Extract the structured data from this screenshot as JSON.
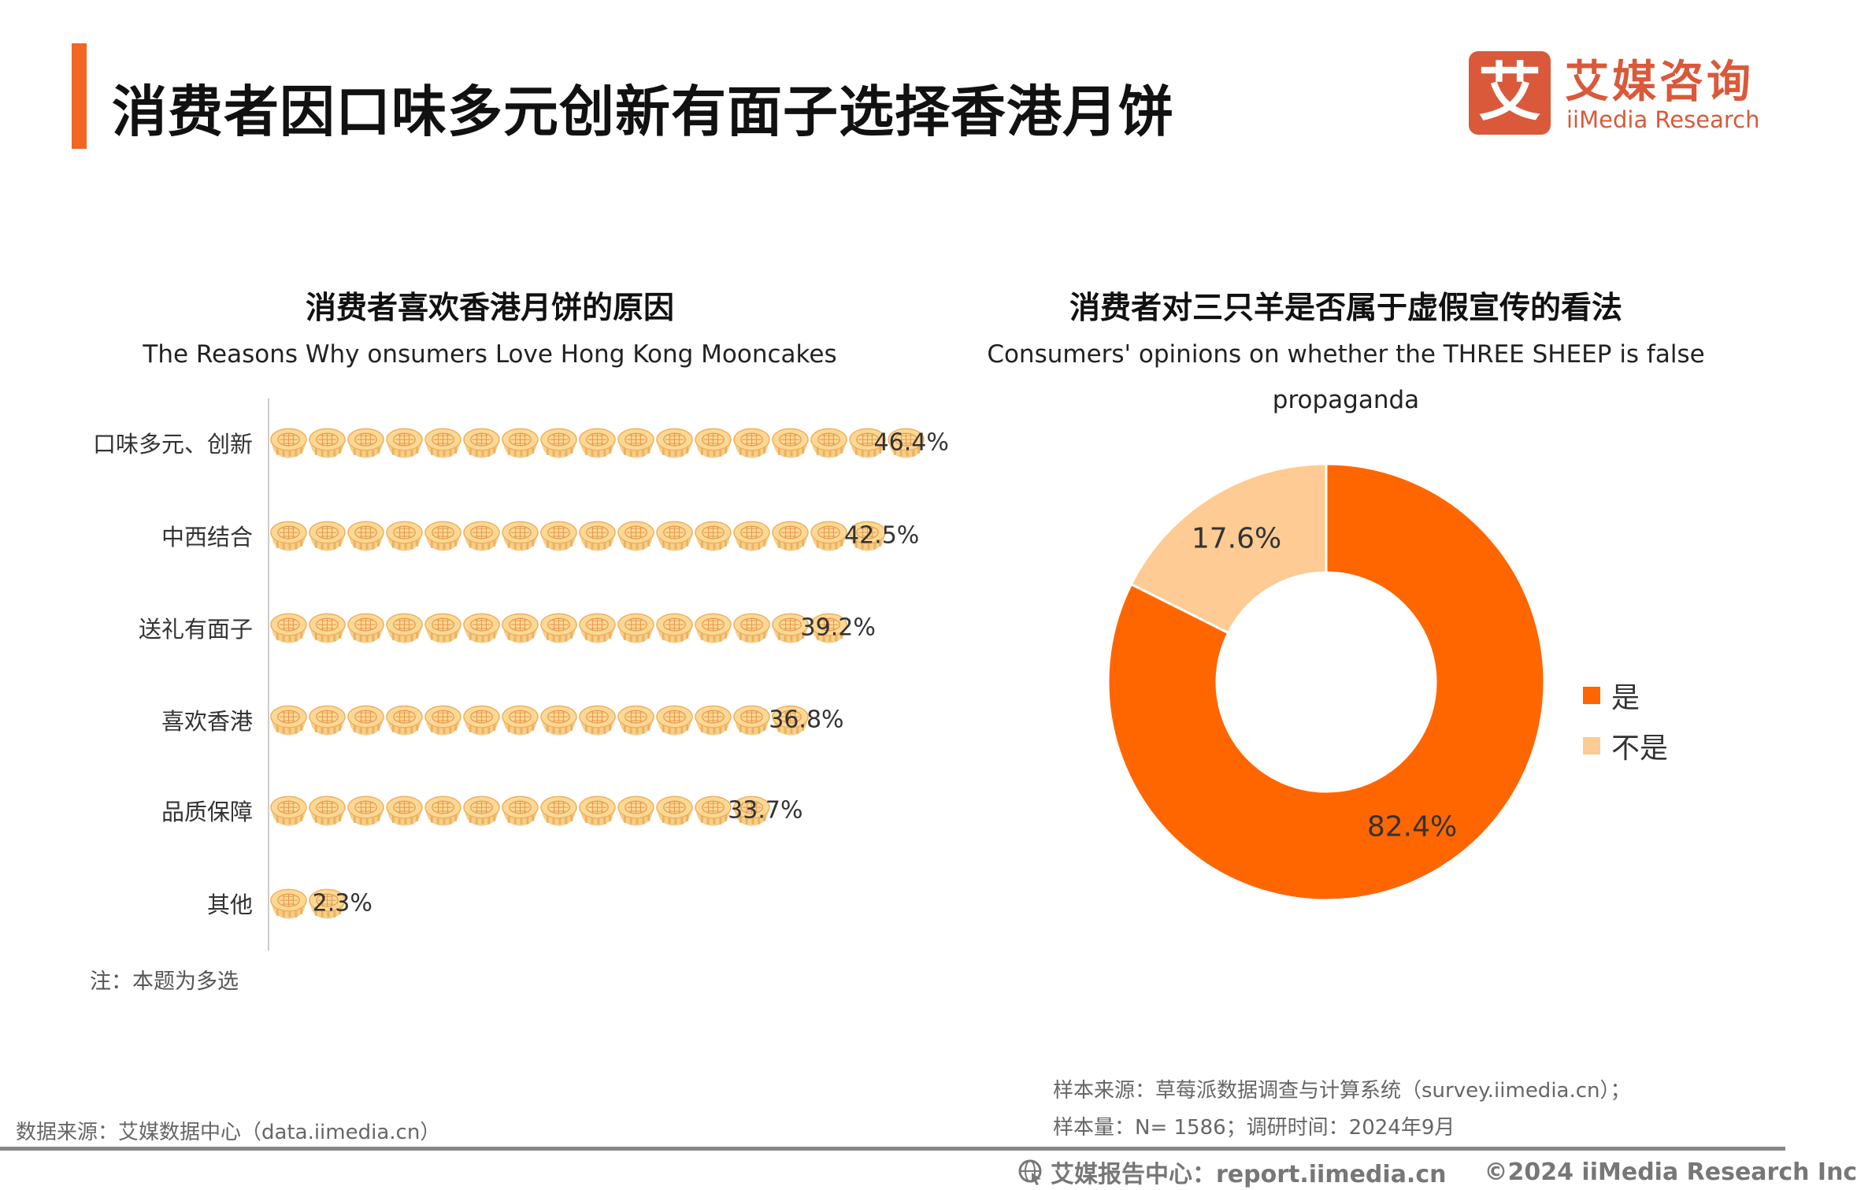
{
  "header": {
    "title": "消费者因口味多元创新有面子选择香港月饼",
    "logo_cn": "艾媒咨询",
    "logo_en": "iiMedia Research",
    "logo_mark": "艾"
  },
  "chart_data": [
    {
      "type": "bar",
      "orientation": "horizontal",
      "title": "消费者喜欢香港月饼的原因",
      "subtitle": "The Reasons Why onsumers Love Hong Kong Mooncakes",
      "categories": [
        "口味多元、创新",
        "中西结合",
        "送礼有面子",
        "喜欢香港",
        "品质保障",
        "其他"
      ],
      "values": [
        46.4,
        42.5,
        39.2,
        36.8,
        33.7,
        2.3
      ],
      "value_labels": [
        "46.4%",
        "42.5%",
        "39.2%",
        "36.8%",
        "33.7%",
        "2.3%"
      ],
      "unit": "%",
      "marker": "mooncake-icon",
      "note": "注：本题为多选"
    },
    {
      "type": "pie",
      "donut": true,
      "title": "消费者对三只羊是否属于虚假宣传的看法",
      "subtitle": "Consumers' opinions on whether the THREE SHEEP  is false propaganda",
      "categories": [
        "是",
        "不是"
      ],
      "values": [
        82.4,
        17.6
      ],
      "value_labels": [
        "82.4%",
        "17.6%"
      ],
      "colors": [
        "#FF6600",
        "#FDCB93"
      ],
      "legend": "right"
    }
  ],
  "footer": {
    "source_left": "数据来源：艾媒数据中心（data.iimedia.cn）",
    "sample_source": "样本来源：草莓派数据调查与计算系统（survey.iimedia.cn）；",
    "sample_size": "样本量：N= 1586；调研时间：2024年9月",
    "report_center": "艾媒报告中心：report.iimedia.cn",
    "copyright": "©2024  iiMedia Research  Inc"
  }
}
